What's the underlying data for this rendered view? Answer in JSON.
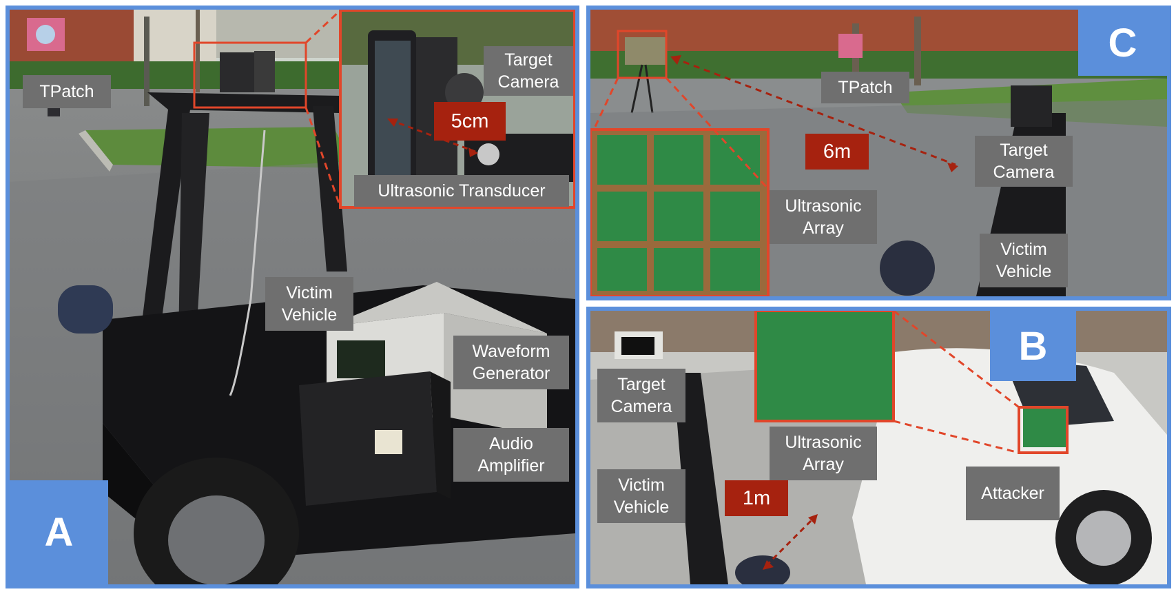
{
  "panels": {
    "a": {
      "letter": "A",
      "labels": {
        "tpatch": "TPatch",
        "target_camera": "Target\nCamera",
        "ultrasonic_transducer": "Ultrasonic Transducer",
        "victim_vehicle": "Victim\nVehicle",
        "waveform_generator": "Waveform\nGenerator",
        "audio_amplifier": "Audio\nAmplifier"
      },
      "distance": "5cm"
    },
    "b": {
      "letter": "B",
      "labels": {
        "target_camera": "Target\nCamera",
        "ultrasonic_array": "Ultrasonic\nArray",
        "victim_vehicle": "Victim\nVehicle",
        "attacker": "Attacker"
      },
      "distance": "1m"
    },
    "c": {
      "letter": "C",
      "labels": {
        "tpatch": "TPatch",
        "target_camera": "Target\nCamera",
        "ultrasonic_array": "Ultrasonic\nArray",
        "victim_vehicle": "Victim\nVehicle"
      },
      "distance": "6m"
    }
  },
  "colors": {
    "panel_border": "#5b8fdb",
    "label_bg": "#6f6f6f",
    "distance_bg": "#a6220f",
    "highlight": "#e1462a"
  }
}
